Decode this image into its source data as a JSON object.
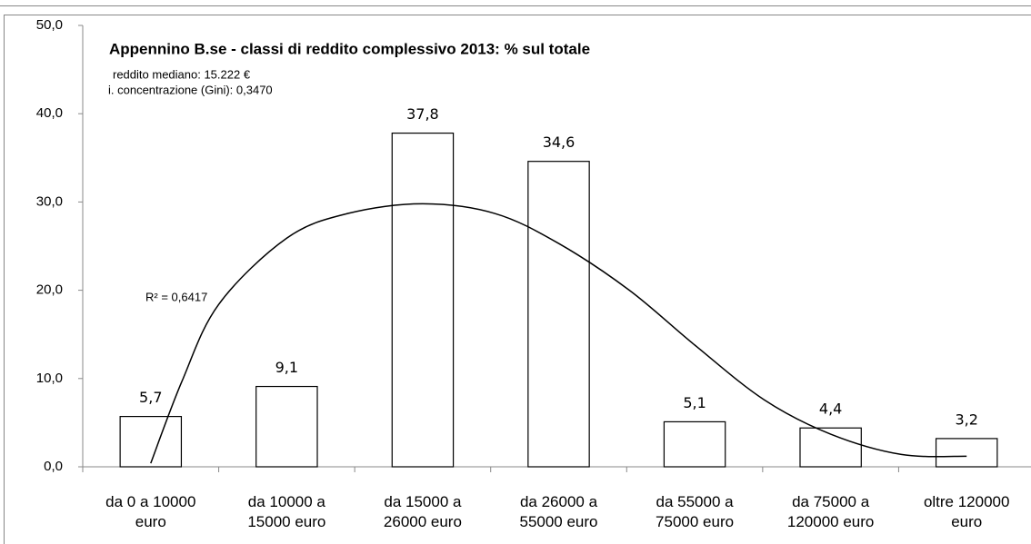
{
  "chart_data": {
    "type": "bar",
    "title": "Appennino B.se - classi di reddito complessivo 2013: % sul totale",
    "subtitle": [
      "reddito mediano:  15.222 €",
      "i. concentrazione (Gini): 0,3470"
    ],
    "categories": [
      "da 0 a 10000\neuro",
      "da 10000 a\n15000 euro",
      "da 15000 a\n26000 euro",
      "da 26000 a\n55000 euro",
      "da 55000 a\n75000 euro",
      "da 75000 a\n120000 euro",
      "oltre 120000\neuro"
    ],
    "values": [
      5.7,
      9.1,
      37.8,
      34.6,
      5.1,
      4.4,
      3.2
    ],
    "value_labels": [
      "5,7",
      "9,1",
      "37,8",
      "34,6",
      "5,1",
      "4,4",
      "3,2"
    ],
    "color": "#ffffff",
    "ylim": [
      0,
      50
    ],
    "yticks": [
      {
        "value": 0,
        "label": "0,0"
      },
      {
        "value": 10,
        "label": "10,0"
      },
      {
        "value": 20,
        "label": "20,0"
      },
      {
        "value": 30,
        "label": "30,0"
      },
      {
        "value": 40,
        "label": "40,0"
      },
      {
        "value": 50,
        "label": "50,0"
      }
    ],
    "trendline": {
      "annotation": "R² = 0,6417",
      "color": "#000000",
      "x": [
        0,
        0.23,
        0.5,
        1,
        1.45,
        2,
        2.53,
        3,
        3.52,
        4,
        4.51,
        5,
        5.52,
        6
      ],
      "values": [
        0.4,
        9.7,
        18.4,
        25.9,
        28.7,
        29.8,
        28.7,
        25.3,
        20,
        13.8,
        7.6,
        3.7,
        1.4,
        1.2
      ]
    }
  }
}
